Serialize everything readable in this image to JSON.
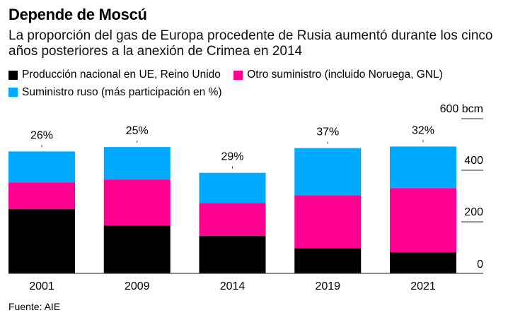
{
  "title": "Depende de Moscú",
  "subtitle": "La proporción del gas de Europa procedente de Rusia aumentó durante los cinco años posteriores a la anexión de Crimea en 2014",
  "source": "Fuente: AIE",
  "chart_data": {
    "type": "bar",
    "stacked": true,
    "categories": [
      "2001",
      "2009",
      "2014",
      "2019",
      "2021"
    ],
    "series": [
      {
        "name": "Producción nacional en UE, Reino Unido",
        "color": "#000000",
        "values": [
          249,
          186,
          145,
          98,
          82
        ]
      },
      {
        "name": "Otro suministro (incluido Noruega, GNL)",
        "color": "#ff0090",
        "values": [
          104,
          178,
          128,
          205,
          249
        ]
      },
      {
        "name": "Suministro ruso (más participación en %)",
        "color": "#00aaff",
        "values": [
          120,
          126,
          117,
          183,
          161
        ]
      }
    ],
    "data_labels": [
      "26%",
      "25%",
      "29%",
      "37%",
      "32%"
    ],
    "yticks": [
      0,
      200,
      400,
      600
    ],
    "ytick_labels": [
      "0",
      "200",
      "400",
      "600 bcm"
    ],
    "ylim": [
      0,
      600
    ],
    "ylabel": "bcm",
    "legend_position": "top-left",
    "grid": false
  }
}
